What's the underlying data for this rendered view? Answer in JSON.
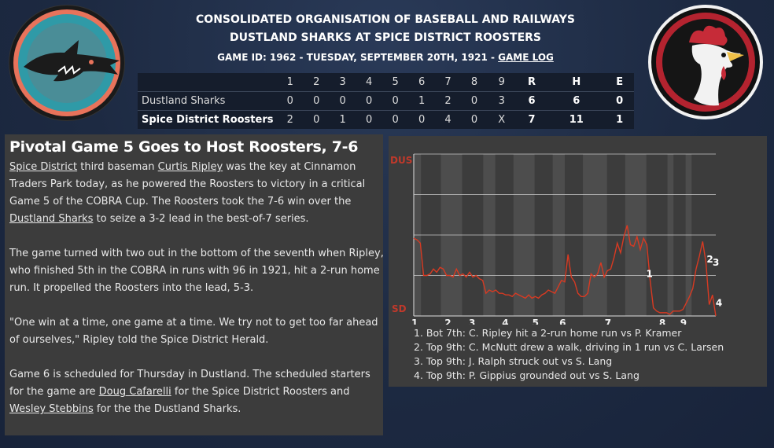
{
  "header": {
    "league": "CONSOLIDATED ORGANISATION OF BASEBALL AND RAILWAYS",
    "matchup": "DUSTLAND SHARKS AT SPICE DISTRICT ROOSTERS",
    "game_info": "GAME ID: 1962 - TUESDAY, SEPTEMBER 20TH, 1921 - ",
    "game_log_link": "GAME LOG"
  },
  "logos": {
    "away": "shark-logo-icon",
    "home": "rooster-logo-icon"
  },
  "boxscore": {
    "columns": [
      "1",
      "2",
      "3",
      "4",
      "5",
      "6",
      "7",
      "8",
      "9",
      "R",
      "H",
      "E"
    ],
    "rows": [
      {
        "team": "Dustland Sharks",
        "cells": [
          "0",
          "0",
          "0",
          "0",
          "0",
          "1",
          "2",
          "0",
          "3",
          "6",
          "6",
          "0"
        ]
      },
      {
        "team": "Spice District Roosters",
        "cells": [
          "2",
          "0",
          "1",
          "0",
          "0",
          "0",
          "4",
          "0",
          "X",
          "7",
          "11",
          "1"
        ]
      }
    ]
  },
  "article": {
    "title": "Pivotal Game 5 Goes to Host Roosters, 7-6",
    "p1_link1": "Spice District",
    "p1_t1": " third baseman ",
    "p1_link2": "Curtis Ripley",
    "p1_t2": " was the key at Cinnamon Traders Park today, as he powered the Roosters to victory in a critical Game 5 of the COBRA Cup. The Roosters took the 7-6 win over the ",
    "p1_link3": "Dustland Sharks",
    "p1_t3": " to seize a 3-2 lead in the best-of-7 series.",
    "p2": "The game turned with two out in the bottom of the seventh when Ripley, who finished 5th in the COBRA in runs with 96 in 1921, hit a 2-run home run. It propelled the Roosters into the lead, 5-3.",
    "p3": "\"One win at a time, one game at a time. We try not to get too far ahead of ourselves,\" Ripley told the Spice District Herald.",
    "p4_t1": "Game 6 is scheduled for Thursday in Dustland. The scheduled starters for the game are ",
    "p4_link1": "Doug Cafarelli",
    "p4_t2": " for the Spice District Roosters and ",
    "p4_link2": "Wesley Stebbins",
    "p4_t3": " for the the Dustland Sharks."
  },
  "chart_data": {
    "type": "line",
    "title": "",
    "top_label": "DUS",
    "bottom_label": "SD",
    "inning_labels": [
      "1",
      "2",
      "3",
      "4",
      "5",
      "6",
      "7",
      "8",
      "9"
    ],
    "line_color": "#d83a22",
    "top_label_color": "#c0392b",
    "bottom_label_color": "#c0392b",
    "ylim": [
      0,
      1
    ],
    "series": [
      {
        "values": [
          0.48,
          0.47,
          0.45,
          0.25,
          0.25,
          0.26,
          0.29,
          0.27,
          0.3,
          0.29,
          0.25,
          0.25,
          0.24,
          0.29,
          0.25,
          0.26,
          0.24,
          0.27,
          0.24,
          0.25,
          0.23,
          0.22,
          0.14,
          0.16,
          0.15,
          0.16,
          0.14,
          0.14,
          0.13,
          0.13,
          0.12,
          0.14,
          0.13,
          0.12,
          0.11,
          0.13,
          0.11,
          0.12,
          0.11,
          0.13,
          0.14,
          0.16,
          0.15,
          0.14,
          0.18,
          0.22,
          0.21,
          0.38,
          0.24,
          0.21,
          0.14,
          0.12,
          0.12,
          0.14,
          0.26,
          0.24,
          0.26,
          0.33,
          0.24,
          0.28,
          0.29,
          0.36,
          0.45,
          0.39,
          0.49,
          0.56,
          0.44,
          0.43,
          0.49,
          0.41,
          0.48,
          0.44,
          0.22,
          0.05,
          0.03,
          0.02,
          0.02,
          0.02,
          0.01,
          0.03,
          0.03,
          0.03,
          0.04,
          0.08,
          0.12,
          0.17,
          0.29,
          0.37,
          0.46,
          0.33,
          0.07,
          0.13,
          0.0
        ]
      }
    ],
    "shaded_bands": [
      [
        0,
        0.024
      ],
      [
        0.09,
        0.16
      ],
      [
        0.23,
        0.27
      ],
      [
        0.33,
        0.4
      ],
      [
        0.46,
        0.5
      ],
      [
        0.56,
        0.64
      ],
      [
        0.7,
        0.77
      ],
      [
        0.84,
        0.86
      ],
      [
        0.9,
        0.92
      ]
    ],
    "annotations": [
      {
        "label": "1",
        "x": 0.78,
        "y": 0.26
      },
      {
        "label": "2",
        "x": 0.98,
        "y": 0.35
      },
      {
        "label": "3",
        "x": 1.0,
        "y": 0.33
      },
      {
        "label": "4",
        "x": 1.01,
        "y": 0.08
      }
    ]
  },
  "graph_notes": [
    "1. Bot 7th: C. Ripley hit a 2-run home run vs P. Kramer",
    "2. Top 9th: C. McNutt drew a walk, driving in 1 run vs C. Larsen",
    "3. Top 9th: J. Ralph struck out vs S. Lang",
    "4. Top 9th: P. Gippius grounded out vs S. Lang"
  ]
}
